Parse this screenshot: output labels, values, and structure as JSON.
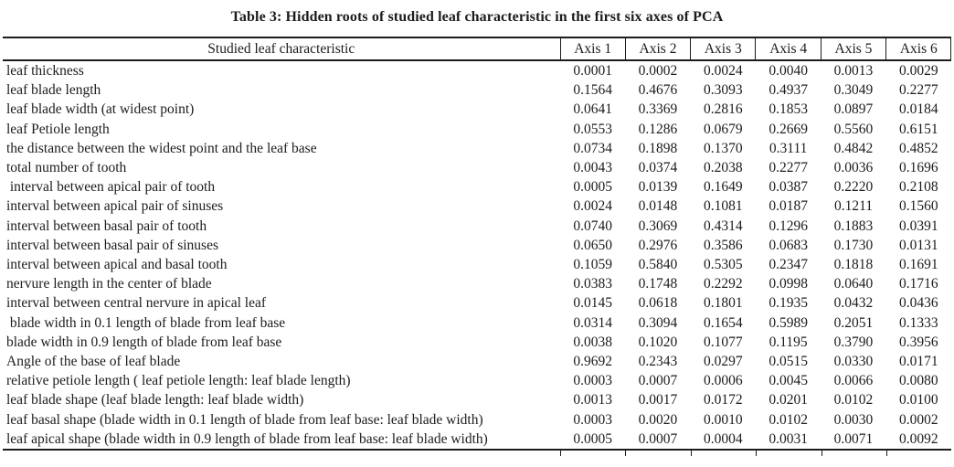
{
  "title": "Table 3: Hidden roots of studied leaf characteristic in the first six axes of PCA",
  "colors": {
    "text": "#1c1c1c",
    "rule": "#1c1c1c",
    "background": "#ffffff"
  },
  "chart_data": {
    "type": "table",
    "title": "Table 3: Hidden roots of studied leaf characteristic in the first six axes of PCA",
    "columns": [
      "Studied leaf characteristic",
      "Axis 1",
      "Axis 2",
      "Axis 3",
      "Axis 4",
      "Axis 5",
      "Axis 6"
    ]
  },
  "table": {
    "char_header": "Studied leaf characteristic",
    "axis_headers": [
      "Axis 1",
      "Axis 2",
      "Axis 3",
      "Axis 4",
      "Axis 5",
      "Axis 6"
    ],
    "rows": [
      {
        "label": "leaf thickness",
        "values": [
          "0.0001",
          "0.0002",
          "0.0024",
          "0.0040",
          "0.0013",
          "0.0029"
        ]
      },
      {
        "label": "leaf blade length",
        "values": [
          "0.1564",
          "0.4676",
          "0.3093",
          "0.4937",
          "0.3049",
          "0.2277"
        ]
      },
      {
        "label": "leaf blade width (at widest point)",
        "values": [
          "0.0641",
          "0.3369",
          "0.2816",
          "0.1853",
          "0.0897",
          "0.0184"
        ]
      },
      {
        "label": "leaf Petiole length",
        "values": [
          "0.0553",
          "0.1286",
          "0.0679",
          "0.2669",
          "0.5560",
          "0.6151"
        ]
      },
      {
        "label": "the distance between the widest point and the leaf base",
        "values": [
          "0.0734",
          "0.1898",
          "0.1370",
          "0.3111",
          "0.4842",
          "0.4852"
        ]
      },
      {
        "label": "total number of tooth",
        "values": [
          "0.0043",
          "0.0374",
          "0.2038",
          "0.2277",
          "0.0036",
          "0.1696"
        ]
      },
      {
        "label": " interval between apical pair of tooth",
        "values": [
          "0.0005",
          "0.0139",
          "0.1649",
          "0.0387",
          "0.2220",
          "0.2108"
        ]
      },
      {
        "label": "interval between apical pair of sinuses",
        "values": [
          "0.0024",
          "0.0148",
          "0.1081",
          "0.0187",
          "0.1211",
          "0.1560"
        ]
      },
      {
        "label": "interval between basal pair of tooth",
        "values": [
          "0.0740",
          "0.3069",
          "0.4314",
          "0.1296",
          "0.1883",
          "0.0391"
        ]
      },
      {
        "label": "interval between basal pair of sinuses",
        "values": [
          "0.0650",
          "0.2976",
          "0.3586",
          "0.0683",
          "0.1730",
          "0.0131"
        ]
      },
      {
        "label": "interval between apical and basal tooth",
        "values": [
          "0.1059",
          "0.5840",
          "0.5305",
          "0.2347",
          "0.1818",
          "0.1691"
        ]
      },
      {
        "label": "nervure length in the center of blade",
        "values": [
          "0.0383",
          "0.1748",
          "0.2292",
          "0.0998",
          "0.0640",
          "0.1716"
        ]
      },
      {
        "label": "interval between central nervure in apical leaf",
        "values": [
          "0.0145",
          "0.0618",
          "0.1801",
          "0.1935",
          "0.0432",
          "0.0436"
        ]
      },
      {
        "label": " blade width in 0.1 length of blade from leaf base",
        "values": [
          "0.0314",
          "0.3094",
          "0.1654",
          "0.5989",
          "0.2051",
          "0.1333"
        ]
      },
      {
        "label": "blade width in 0.9 length of blade from leaf base",
        "values": [
          "0.0038",
          "0.1020",
          "0.1077",
          "0.1195",
          "0.3790",
          "0.3956"
        ]
      },
      {
        "label": "Angle of the base of leaf blade",
        "values": [
          "0.9692",
          "0.2343",
          "0.0297",
          "0.0515",
          "0.0330",
          "0.0171"
        ]
      },
      {
        "label": "relative petiole length ( leaf petiole length: leaf blade length)",
        "values": [
          "0.0003",
          "0.0007",
          "0.0006",
          "0.0045",
          "0.0066",
          "0.0080"
        ]
      },
      {
        "label": "leaf blade shape (leaf blade length: leaf blade width)",
        "values": [
          "0.0013",
          "0.0017",
          "0.0172",
          "0.0201",
          "0.0102",
          "0.0100"
        ]
      },
      {
        "label": "leaf basal shape (blade width in 0.1 length of blade from leaf base: leaf blade width)",
        "values": [
          "0.0003",
          "0.0020",
          "0.0010",
          "0.0102",
          "0.0030",
          "0.0002"
        ]
      },
      {
        "label": "leaf apical shape (blade width in 0.9 length of blade from leaf base: leaf blade width)",
        "values": [
          "0.0005",
          "0.0007",
          "0.0004",
          "0.0031",
          "0.0071",
          "0.0092"
        ]
      }
    ]
  }
}
